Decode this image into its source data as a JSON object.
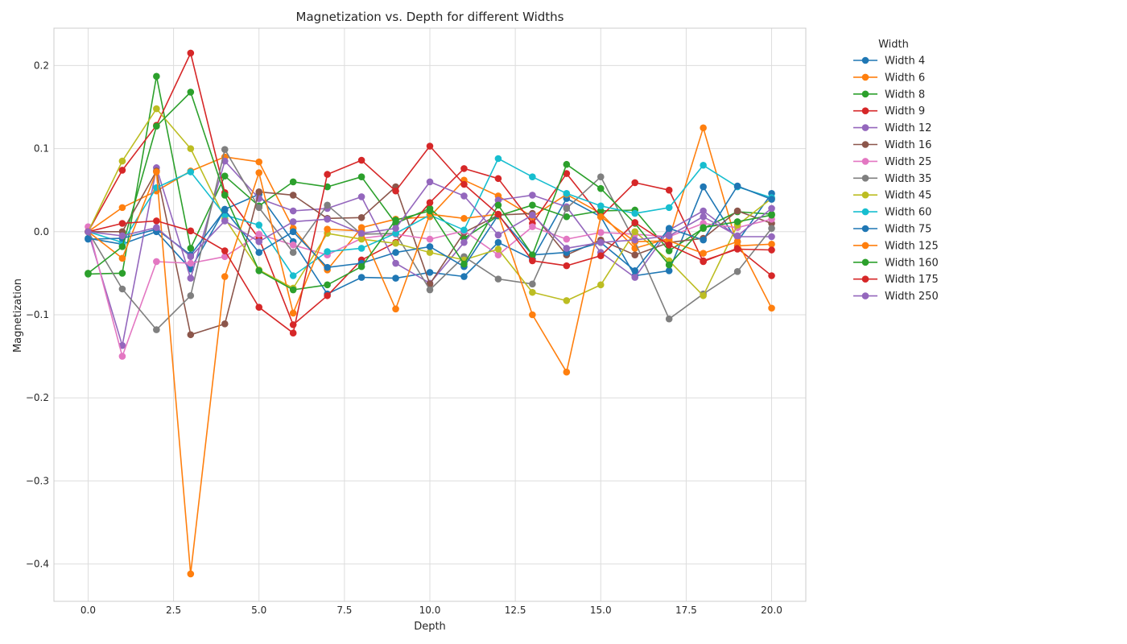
{
  "chart_data": {
    "type": "line",
    "title": "Magnetization vs. Depth for different Widths",
    "xlabel": "Depth",
    "ylabel": "Magnetization",
    "xlim": [
      -1,
      21
    ],
    "ylim": [
      -0.445,
      0.245
    ],
    "xticks": [
      0,
      2.5,
      5,
      7.5,
      10,
      12.5,
      15,
      17.5,
      20
    ],
    "xtick_labels": [
      "0.0",
      "2.5",
      "5.0",
      "7.5",
      "10.0",
      "12.5",
      "15.0",
      "17.5",
      "20.0"
    ],
    "yticks": [
      -0.4,
      -0.3,
      -0.2,
      -0.1,
      0.0,
      0.1,
      0.2
    ],
    "ytick_labels": [
      "−0.4",
      "−0.3",
      "−0.2",
      "−0.1",
      "0.0",
      "0.1",
      "0.2"
    ],
    "grid": true,
    "legend_title": "Width",
    "legend_placement": "outside-right",
    "x": [
      0,
      1,
      2,
      3,
      4,
      5,
      6,
      7,
      8,
      9,
      10,
      11,
      12,
      13,
      14,
      15,
      16,
      17,
      18,
      19,
      20
    ],
    "series": [
      {
        "name": "Width 4",
        "color": "#1f77b4",
        "values": [
          -0.008,
          -0.015,
          0.0,
          -0.045,
          0.027,
          0.045,
          -0.012,
          -0.075,
          -0.055,
          -0.056,
          -0.049,
          -0.054,
          -0.013,
          -0.033,
          0.04,
          0.018,
          -0.053,
          -0.047,
          0.054,
          -0.012,
          0.046
        ]
      },
      {
        "name": "Width 6",
        "color": "#ff7f0e",
        "values": [
          0.0,
          0.029,
          0.049,
          0.073,
          0.09,
          0.084,
          0.004,
          -0.046,
          0.005,
          0.015,
          0.018,
          0.062,
          0.043,
          0.018,
          0.045,
          0.022,
          -0.02,
          -0.008,
          0.125,
          -0.017,
          -0.015
        ]
      },
      {
        "name": "Width 8",
        "color": "#2ca02c",
        "values": [
          -0.051,
          -0.05,
          0.187,
          -0.02,
          0.067,
          0.031,
          0.06,
          0.054,
          0.066,
          0.01,
          0.028,
          -0.008,
          0.019,
          0.032,
          0.018,
          0.025,
          0.026,
          -0.023,
          0.004,
          0.024,
          0.021
        ]
      },
      {
        "name": "Width 9",
        "color": "#d62728",
        "values": [
          0.0,
          0.074,
          0.128,
          0.215,
          0.047,
          -0.008,
          -0.112,
          -0.077,
          -0.034,
          -0.013,
          0.035,
          0.076,
          0.064,
          0.01,
          0.07,
          0.018,
          0.059,
          0.05,
          -0.036,
          -0.02,
          -0.053
        ]
      },
      {
        "name": "Width 12",
        "color": "#9467bd",
        "values": [
          0.0,
          -0.137,
          0.077,
          -0.056,
          0.085,
          0.04,
          0.025,
          0.028,
          0.042,
          -0.038,
          -0.062,
          -0.013,
          0.038,
          0.044,
          0.03,
          -0.025,
          -0.055,
          0.002,
          0.025,
          -0.006,
          -0.006
        ]
      },
      {
        "name": "Width 16",
        "color": "#8c564b",
        "values": [
          0.0,
          0.0,
          0.073,
          -0.124,
          -0.111,
          0.048,
          0.044,
          0.016,
          0.017,
          0.054,
          -0.063,
          -0.001,
          0.02,
          0.022,
          -0.028,
          -0.01,
          -0.028,
          -0.013,
          -0.008,
          0.025,
          0.01
        ]
      },
      {
        "name": "Width 25",
        "color": "#e377c2",
        "values": [
          0.006,
          -0.15,
          -0.036,
          -0.038,
          -0.03,
          -0.003,
          -0.016,
          -0.028,
          -0.008,
          -0.003,
          -0.009,
          0.001,
          -0.028,
          0.006,
          -0.009,
          -0.001,
          -0.003,
          -0.006,
          0.01,
          0.005,
          0.015
        ]
      },
      {
        "name": "Width 35",
        "color": "#7f7f7f",
        "values": [
          0.0,
          -0.069,
          -0.118,
          -0.077,
          0.099,
          0.029,
          -0.025,
          0.032,
          -0.003,
          -0.002,
          -0.07,
          -0.03,
          -0.057,
          -0.063,
          0.028,
          0.066,
          -0.012,
          -0.105,
          -0.075,
          -0.048,
          0.004
        ]
      },
      {
        "name": "Width 45",
        "color": "#bcbd22",
        "values": [
          0.0,
          0.085,
          0.148,
          0.1,
          0.016,
          -0.046,
          -0.068,
          -0.002,
          -0.009,
          -0.014,
          -0.025,
          -0.034,
          -0.021,
          -0.073,
          -0.083,
          -0.064,
          0.0,
          -0.035,
          -0.077,
          0.008,
          0.04
        ]
      },
      {
        "name": "Width 60",
        "color": "#17becf",
        "values": [
          0.0,
          -0.013,
          0.053,
          0.072,
          0.02,
          0.008,
          -0.053,
          -0.024,
          -0.02,
          -0.002,
          0.02,
          0.002,
          0.088,
          0.066,
          0.046,
          0.031,
          0.022,
          0.029,
          0.08,
          0.054,
          0.041
        ]
      },
      {
        "name": "Width 75",
        "color": "#1f77b4",
        "values": [
          -0.009,
          -0.008,
          0.003,
          -0.028,
          0.026,
          -0.025,
          0.0,
          -0.043,
          -0.038,
          -0.025,
          -0.018,
          -0.042,
          0.02,
          -0.028,
          -0.025,
          -0.013,
          -0.047,
          0.004,
          -0.01,
          0.055,
          0.039
        ]
      },
      {
        "name": "Width 125",
        "color": "#ff7f0e",
        "values": [
          0.0,
          -0.032,
          0.072,
          -0.412,
          -0.054,
          0.071,
          -0.098,
          0.003,
          0.001,
          -0.093,
          0.021,
          0.016,
          0.021,
          -0.1,
          -0.169,
          0.018,
          -0.012,
          -0.011,
          -0.026,
          -0.012,
          -0.092
        ]
      },
      {
        "name": "Width 160",
        "color": "#2ca02c",
        "values": [
          -0.05,
          -0.018,
          0.127,
          0.168,
          0.044,
          -0.047,
          -0.07,
          -0.064,
          -0.042,
          0.014,
          0.025,
          -0.039,
          0.032,
          -0.028,
          0.081,
          0.052,
          0.01,
          -0.04,
          0.005,
          0.012,
          0.02
        ]
      },
      {
        "name": "Width 175",
        "color": "#d62728",
        "values": [
          0.0,
          0.01,
          0.013,
          0.001,
          -0.023,
          -0.091,
          -0.122,
          0.069,
          0.086,
          0.049,
          0.103,
          0.057,
          0.021,
          -0.035,
          -0.041,
          -0.029,
          0.011,
          -0.016,
          -0.035,
          -0.021,
          -0.022
        ]
      },
      {
        "name": "Width 250",
        "color": "#9467bd",
        "values": [
          0.0,
          -0.005,
          0.005,
          -0.03,
          0.013,
          -0.012,
          0.012,
          0.015,
          -0.002,
          0.004,
          0.06,
          0.043,
          -0.004,
          0.02,
          -0.02,
          -0.013,
          -0.01,
          -0.005,
          0.018,
          -0.005,
          0.028
        ]
      }
    ]
  }
}
